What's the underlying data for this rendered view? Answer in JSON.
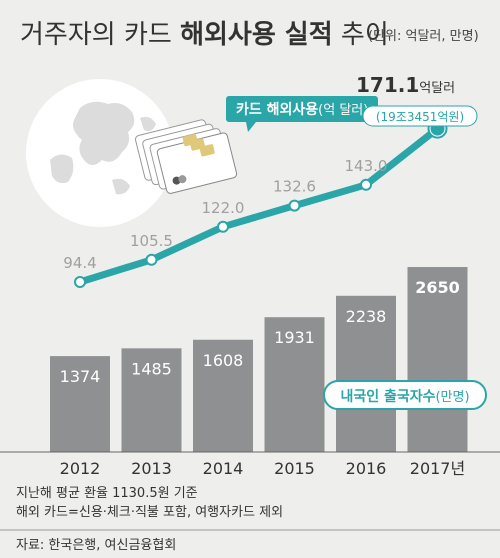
{
  "title": {
    "part1": "거주자의 카드 ",
    "part2": "해외사용 실적",
    "part3": " 추이"
  },
  "unit_note": "(단위: 억달러, 만명)",
  "colors": {
    "line": "#2aa5a8",
    "bar": "#8f9092",
    "box": "#2aa5a8",
    "bg": "#eeeeec",
    "text": "#333333",
    "value_muted": "#a0a0a0"
  },
  "chart_data": {
    "type": "bar+line",
    "categories": [
      "2012",
      "2013",
      "2014",
      "2015",
      "2016",
      "2017년"
    ],
    "series": [
      {
        "name": "카드 해외사용(억 달러)",
        "type": "line",
        "values": [
          94.4,
          105.5,
          122.0,
          132.6,
          143.0,
          171.1
        ],
        "labels": [
          "94.4",
          "105.5",
          "122.0",
          "132.6",
          "143.0",
          "171.1"
        ]
      },
      {
        "name": "내국인 출국자수(만명)",
        "type": "bar",
        "values": [
          1374,
          1485,
          1608,
          1931,
          2238,
          2650
        ],
        "labels": [
          "1374",
          "1485",
          "1608",
          "1931",
          "2238",
          "2650"
        ]
      }
    ],
    "line_legend": {
      "bold": "카드 해외사용",
      "light": "(억 달러)"
    },
    "bar_legend": {
      "bold": "내국인 출국자수",
      "light": "(만명)"
    },
    "highlight": {
      "value": "171.1",
      "unit": "억달러",
      "sub": "(19조3451억원)"
    }
  },
  "notes": [
    "지난해 평균 환율 1130.5원 기준",
    "해외 카드=신용·체크·직불 포함, 여행자카드 제외"
  ],
  "source": "자료: 한국은행, 여신금융협회"
}
